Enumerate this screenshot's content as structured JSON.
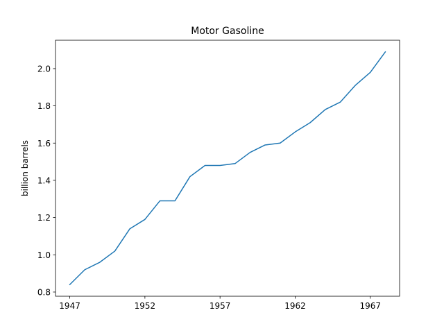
{
  "chart_data": {
    "type": "line",
    "title": "Motor Gasoline",
    "xlabel": "",
    "ylabel": "billion barrels",
    "xlim": [
      1946.05,
      1968.95
    ],
    "ylim": [
      0.7775,
      2.1525
    ],
    "xticks": [
      1947,
      1952,
      1957,
      1962,
      1967
    ],
    "xtick_labels": [
      "1947",
      "1952",
      "1957",
      "1962",
      "1967"
    ],
    "yticks": [
      0.8,
      1.0,
      1.2,
      1.4,
      1.6,
      1.8,
      2.0
    ],
    "ytick_labels": [
      "0.8",
      "1.0",
      "1.2",
      "1.4",
      "1.6",
      "1.8",
      "2.0"
    ],
    "grid": false,
    "legend": "none",
    "series": [
      {
        "color": "#1f77b4",
        "x": [
          1947,
          1948,
          1949,
          1950,
          1951,
          1952,
          1953,
          1954,
          1955,
          1956,
          1957,
          1958,
          1959,
          1960,
          1961,
          1962,
          1963,
          1964,
          1965,
          1966,
          1967,
          1968
        ],
        "y": [
          0.84,
          0.92,
          0.96,
          1.02,
          1.14,
          1.19,
          1.29,
          1.29,
          1.42,
          1.48,
          1.48,
          1.49,
          1.55,
          1.59,
          1.6,
          1.66,
          1.71,
          1.78,
          1.82,
          1.91,
          1.98,
          2.09
        ]
      }
    ]
  }
}
